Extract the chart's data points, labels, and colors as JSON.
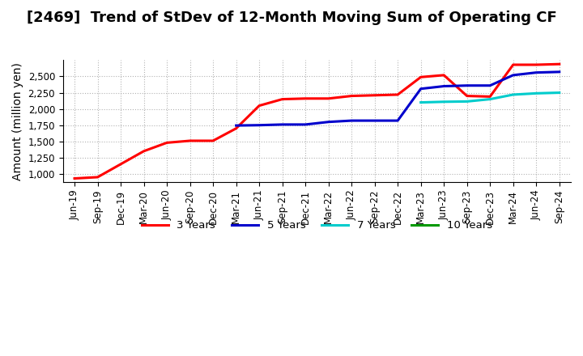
{
  "title": "[2469]  Trend of StDev of 12-Month Moving Sum of Operating CF",
  "ylabel": "Amount (million yen)",
  "ylim": [
    875,
    2750
  ],
  "yticks": [
    1000,
    1250,
    1500,
    1750,
    2000,
    2250,
    2500
  ],
  "background_color": "#ffffff",
  "plot_bg_color": "#ffffff",
  "grid_color": "#aaaaaa",
  "x_labels": [
    "Jun-19",
    "Sep-19",
    "Dec-19",
    "Mar-20",
    "Jun-20",
    "Sep-20",
    "Dec-20",
    "Mar-21",
    "Jun-21",
    "Sep-21",
    "Dec-21",
    "Mar-22",
    "Jun-22",
    "Sep-22",
    "Dec-22",
    "Mar-23",
    "Jun-23",
    "Sep-23",
    "Dec-23",
    "Mar-24",
    "Jun-24",
    "Sep-24"
  ],
  "series_3y": {
    "color": "#ff0000",
    "label": "3 Years",
    "x": [
      0,
      1,
      2,
      3,
      4,
      5,
      6,
      7,
      8,
      9,
      10,
      11,
      12,
      13,
      14,
      15,
      16,
      17,
      18,
      19,
      20,
      21
    ],
    "y": [
      930,
      950,
      1150,
      1350,
      1480,
      1510,
      1510,
      1700,
      2050,
      2150,
      2160,
      2160,
      2200,
      2210,
      2220,
      2490,
      2520,
      2200,
      2190,
      2680,
      2680,
      2690
    ]
  },
  "series_5y": {
    "color": "#0000cc",
    "label": "5 Years",
    "x": [
      7,
      8,
      9,
      10,
      11,
      12,
      13,
      14,
      15,
      16,
      17,
      18,
      19,
      20,
      21
    ],
    "y": [
      1745,
      1750,
      1760,
      1760,
      1800,
      1820,
      1820,
      1820,
      2310,
      2350,
      2360,
      2360,
      2520,
      2560,
      2570
    ]
  },
  "series_7y": {
    "color": "#00cccc",
    "label": "7 Years",
    "x": [
      15,
      16,
      17,
      18,
      19,
      20,
      21
    ],
    "y": [
      2100,
      2110,
      2115,
      2150,
      2220,
      2240,
      2250
    ]
  },
  "series_10y": {
    "color": "#009900",
    "label": "10 Years",
    "x": [],
    "y": []
  },
  "title_fontsize": 13,
  "tick_fontsize": 8.5,
  "label_fontsize": 10
}
